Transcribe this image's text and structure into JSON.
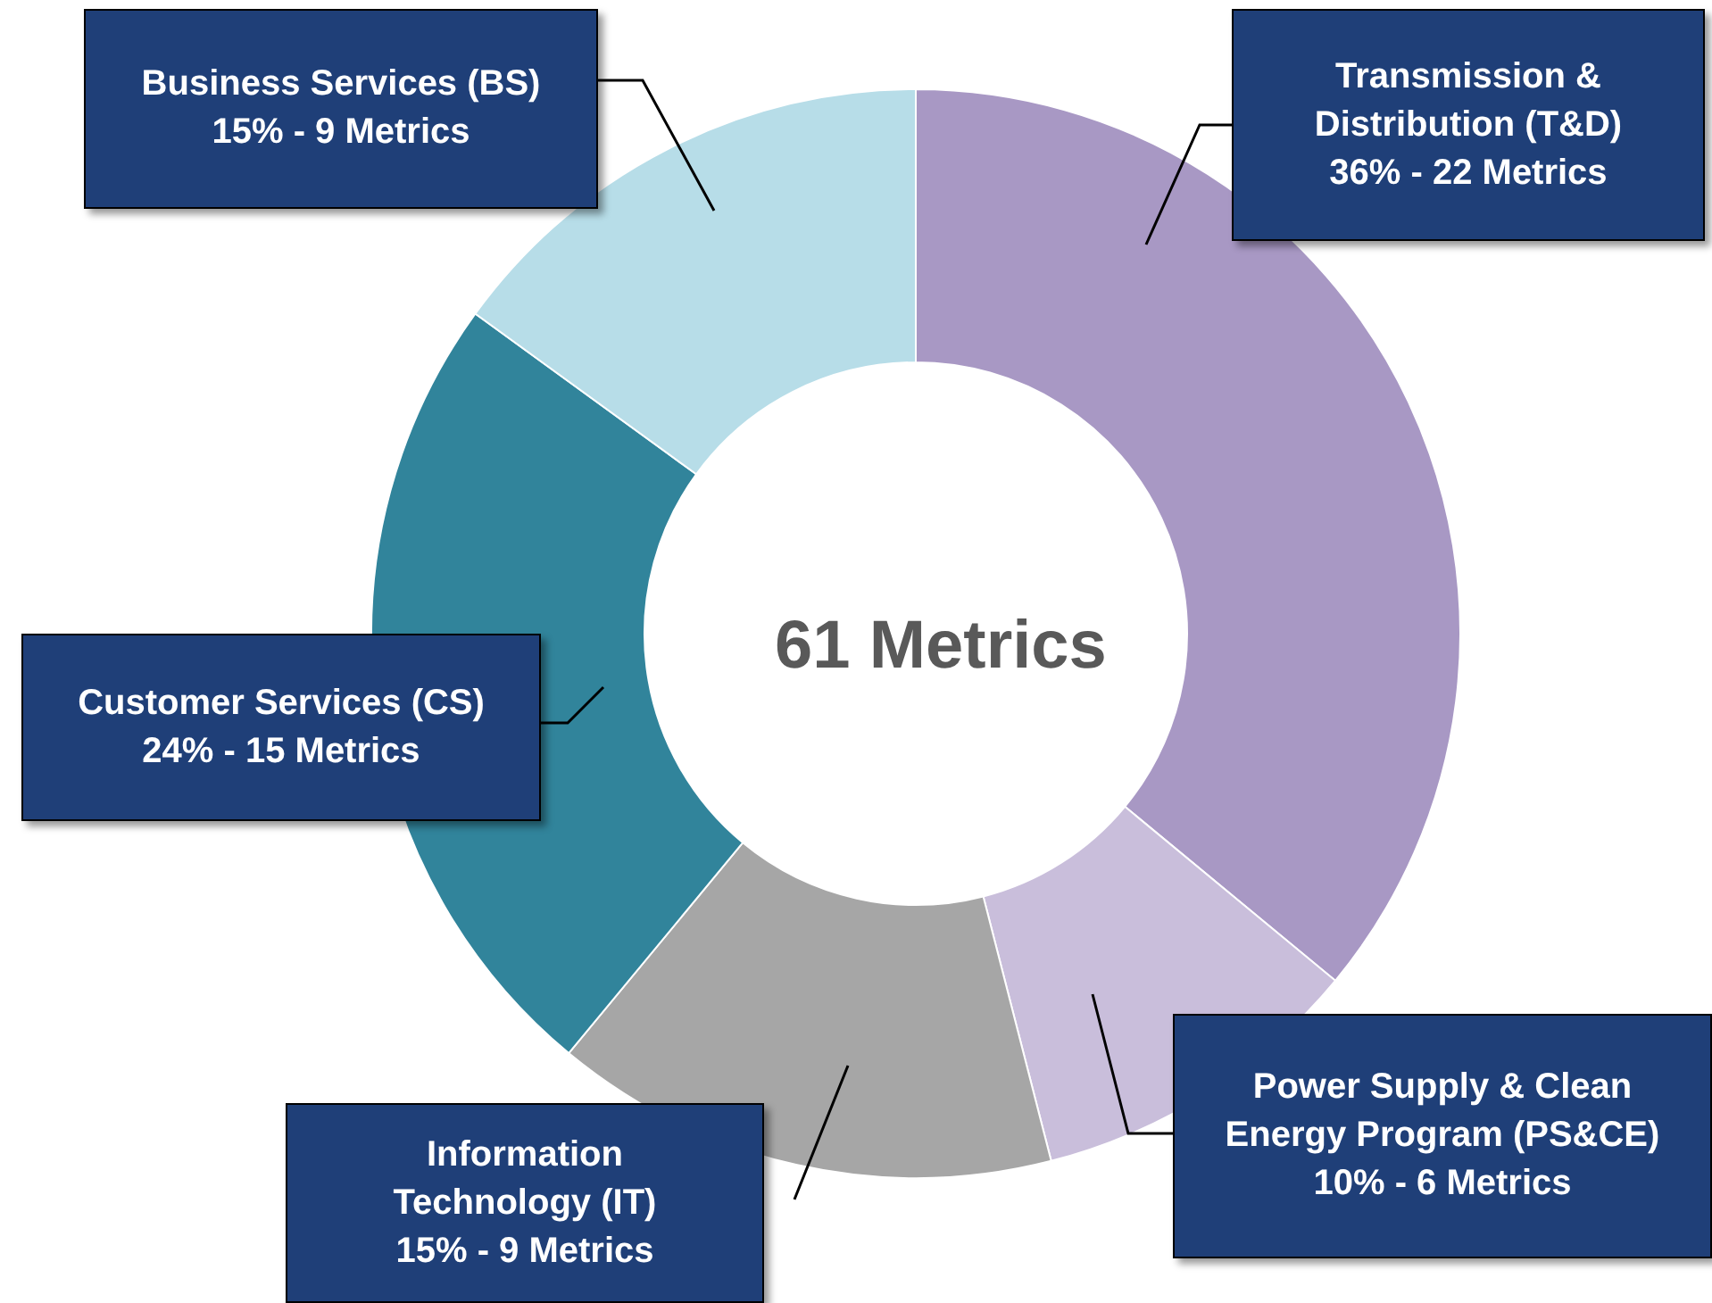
{
  "chart_data": {
    "type": "donut",
    "categories": [
      "Transmission & Distribution (T&D)",
      "Power Supply & Clean Energy Program (PS&CE)",
      "Information Technology (IT)",
      "Customer Services (CS)",
      "Business Services (BS)"
    ],
    "values": [
      36,
      10,
      15,
      24,
      15
    ],
    "value_labels": [
      "36% - 22 Metrics",
      "10% - 6 Metrics",
      "15% - 9 Metrics",
      "24% - 15 Metrics",
      "15% - 9 Metrics"
    ],
    "colors": [
      "#a898c4",
      "#c9bedb",
      "#a6a6a6",
      "#31849b",
      "#b7dde8"
    ],
    "annotations": [
      "61 Metrics"
    ],
    "legend": false
  }
}
